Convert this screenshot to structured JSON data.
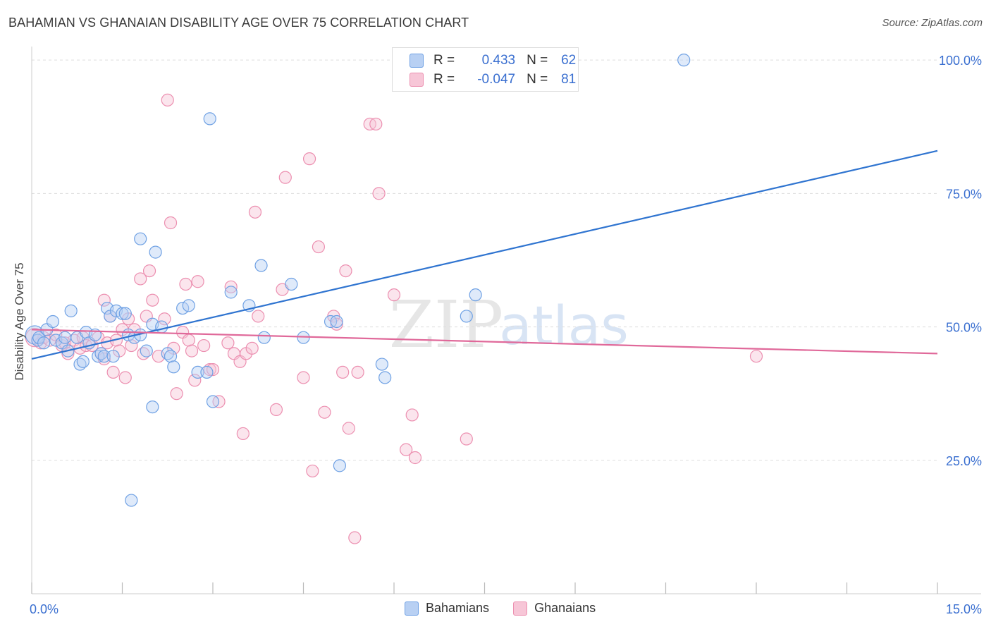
{
  "title": "BAHAMIAN VS GHANAIAN DISABILITY AGE OVER 75 CORRELATION CHART",
  "source": "Source: ZipAtlas.com",
  "watermark": {
    "zip": "ZIP",
    "atlas": "atlas"
  },
  "colors": {
    "blue": "#6fa1e4",
    "blue_fill": "#b8d0f3",
    "blue_line": "#2f74d0",
    "pink": "#ec8fb0",
    "pink_fill": "#f7c6d7",
    "pink_line": "#e0699a",
    "axis_label": "#3a6fd0",
    "grid": "#dddddd"
  },
  "stats": [
    {
      "r_label": "R =",
      "r_value": "0.433",
      "n_label": "N =",
      "n_value": "62"
    },
    {
      "r_label": "R =",
      "r_value": "-0.047",
      "n_label": "N =",
      "n_value": "81"
    }
  ],
  "legend": [
    {
      "label": "Bahamians"
    },
    {
      "label": "Ghanaians"
    }
  ],
  "chart_data": {
    "type": "scatter",
    "title": "BAHAMIAN VS GHANAIAN DISABILITY AGE OVER 75 CORRELATION CHART",
    "xlabel": "",
    "ylabel": "Disability Age Over 75",
    "xlim": [
      0,
      15
    ],
    "ylim": [
      0,
      102
    ],
    "x_tick_labels": [
      "0.0%",
      "15.0%"
    ],
    "y_ticks": [
      25,
      50,
      75,
      100
    ],
    "y_tick_labels": [
      "25.0%",
      "50.0%",
      "75.0%",
      "100.0%"
    ],
    "legend_position": "bottom",
    "series": [
      {
        "name": "Bahamians",
        "trend": {
          "x": [
            0,
            15
          ],
          "y": [
            44.0,
            83.0
          ]
        },
        "points": [
          [
            0.05,
            48.5
          ],
          [
            0.1,
            47.5
          ],
          [
            0.12,
            48.0
          ],
          [
            0.2,
            47.0
          ],
          [
            0.25,
            49.5
          ],
          [
            0.35,
            51.0
          ],
          [
            0.4,
            47.5
          ],
          [
            0.5,
            47.0
          ],
          [
            0.55,
            48.0
          ],
          [
            0.6,
            45.5
          ],
          [
            0.65,
            53.0
          ],
          [
            0.75,
            48.0
          ],
          [
            0.8,
            43.0
          ],
          [
            0.85,
            43.5
          ],
          [
            0.9,
            49.0
          ],
          [
            0.95,
            47.0
          ],
          [
            1.05,
            48.5
          ],
          [
            1.1,
            44.5
          ],
          [
            1.15,
            45.0
          ],
          [
            1.2,
            44.5
          ],
          [
            1.25,
            53.5
          ],
          [
            1.3,
            52.0
          ],
          [
            1.35,
            44.5
          ],
          [
            1.4,
            53.0
          ],
          [
            1.5,
            52.5
          ],
          [
            1.55,
            52.5
          ],
          [
            1.6,
            48.5
          ],
          [
            1.65,
            17.5
          ],
          [
            1.7,
            48.0
          ],
          [
            1.8,
            48.5
          ],
          [
            1.8,
            66.5
          ],
          [
            1.9,
            45.5
          ],
          [
            2.0,
            35.0
          ],
          [
            2.0,
            50.5
          ],
          [
            2.05,
            64.0
          ],
          [
            2.15,
            50.0
          ],
          [
            2.25,
            45.0
          ],
          [
            2.3,
            44.5
          ],
          [
            2.35,
            42.5
          ],
          [
            2.5,
            53.5
          ],
          [
            2.6,
            54.0
          ],
          [
            2.75,
            41.5
          ],
          [
            2.9,
            41.5
          ],
          [
            2.95,
            89.0
          ],
          [
            3.0,
            36.0
          ],
          [
            3.3,
            56.5
          ],
          [
            3.6,
            54.0
          ],
          [
            3.8,
            61.5
          ],
          [
            3.85,
            48.0
          ],
          [
            4.3,
            58.0
          ],
          [
            4.5,
            48.0
          ],
          [
            4.95,
            51.0
          ],
          [
            5.05,
            51.0
          ],
          [
            5.1,
            24.0
          ],
          [
            5.8,
            43.0
          ],
          [
            5.85,
            40.5
          ],
          [
            7.2,
            52.0
          ],
          [
            7.35,
            56.0
          ],
          [
            10.8,
            100.0
          ]
        ]
      },
      {
        "name": "Ghanaians",
        "trend": {
          "x": [
            0,
            15
          ],
          "y": [
            49.5,
            45.0
          ]
        },
        "points": [
          [
            0.05,
            48.0
          ],
          [
            0.1,
            47.5
          ],
          [
            0.15,
            47.0
          ],
          [
            0.2,
            48.0
          ],
          [
            0.3,
            47.5
          ],
          [
            0.4,
            48.5
          ],
          [
            0.5,
            46.5
          ],
          [
            0.55,
            47.0
          ],
          [
            0.6,
            45.0
          ],
          [
            0.7,
            47.5
          ],
          [
            0.8,
            46.0
          ],
          [
            0.85,
            48.0
          ],
          [
            0.9,
            46.5
          ],
          [
            1.0,
            46.5
          ],
          [
            1.1,
            48.0
          ],
          [
            1.15,
            45.0
          ],
          [
            1.2,
            44.0
          ],
          [
            1.25,
            47.0
          ],
          [
            1.2,
            55.0
          ],
          [
            1.3,
            52.0
          ],
          [
            1.35,
            41.5
          ],
          [
            1.4,
            47.5
          ],
          [
            1.45,
            45.5
          ],
          [
            1.5,
            49.5
          ],
          [
            1.55,
            40.5
          ],
          [
            1.6,
            51.5
          ],
          [
            1.65,
            46.5
          ],
          [
            1.7,
            49.5
          ],
          [
            1.8,
            59.0
          ],
          [
            1.85,
            45.0
          ],
          [
            1.9,
            52.0
          ],
          [
            1.95,
            60.5
          ],
          [
            2.0,
            55.0
          ],
          [
            2.1,
            44.5
          ],
          [
            2.2,
            51.5
          ],
          [
            2.25,
            92.5
          ],
          [
            2.3,
            69.5
          ],
          [
            2.35,
            46.0
          ],
          [
            2.4,
            37.5
          ],
          [
            2.5,
            49.0
          ],
          [
            2.55,
            58.0
          ],
          [
            2.6,
            47.5
          ],
          [
            2.65,
            45.5
          ],
          [
            2.7,
            40.0
          ],
          [
            2.75,
            58.5
          ],
          [
            2.85,
            46.5
          ],
          [
            2.95,
            42.0
          ],
          [
            3.0,
            42.0
          ],
          [
            3.1,
            36.0
          ],
          [
            3.25,
            47.0
          ],
          [
            3.3,
            57.5
          ],
          [
            3.35,
            45.0
          ],
          [
            3.45,
            43.5
          ],
          [
            3.5,
            30.0
          ],
          [
            3.55,
            45.0
          ],
          [
            3.65,
            46.0
          ],
          [
            3.7,
            71.5
          ],
          [
            3.75,
            52.0
          ],
          [
            4.05,
            34.5
          ],
          [
            4.15,
            57.0
          ],
          [
            4.2,
            78.0
          ],
          [
            4.5,
            40.5
          ],
          [
            4.6,
            81.5
          ],
          [
            4.65,
            23.0
          ],
          [
            4.75,
            65.0
          ],
          [
            4.85,
            34.0
          ],
          [
            5.0,
            52.0
          ],
          [
            5.05,
            50.5
          ],
          [
            5.15,
            41.5
          ],
          [
            5.2,
            60.5
          ],
          [
            5.25,
            31.0
          ],
          [
            5.35,
            10.5
          ],
          [
            5.4,
            41.5
          ],
          [
            5.6,
            88.0
          ],
          [
            5.7,
            88.0
          ],
          [
            5.75,
            75.0
          ],
          [
            6.0,
            56.0
          ],
          [
            6.2,
            27.0
          ],
          [
            6.3,
            33.5
          ],
          [
            6.35,
            25.5
          ],
          [
            7.2,
            29.0
          ],
          [
            12.0,
            44.5
          ]
        ]
      }
    ]
  }
}
